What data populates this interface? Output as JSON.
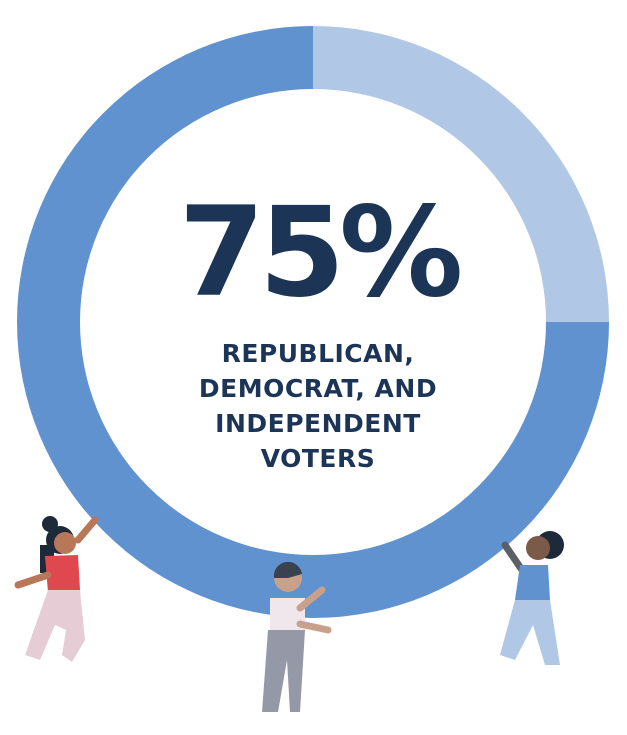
{
  "chart_data": {
    "type": "donut",
    "categories": [
      "REPUBLICAN, DEMOCRAT, AND INDEPENDENT VOTERS",
      null
    ],
    "values": [
      75,
      25
    ],
    "value_labels": [
      "75%",
      null
    ],
    "colors": [
      "#5f92cf",
      "#b0c8e6"
    ]
  }
}
